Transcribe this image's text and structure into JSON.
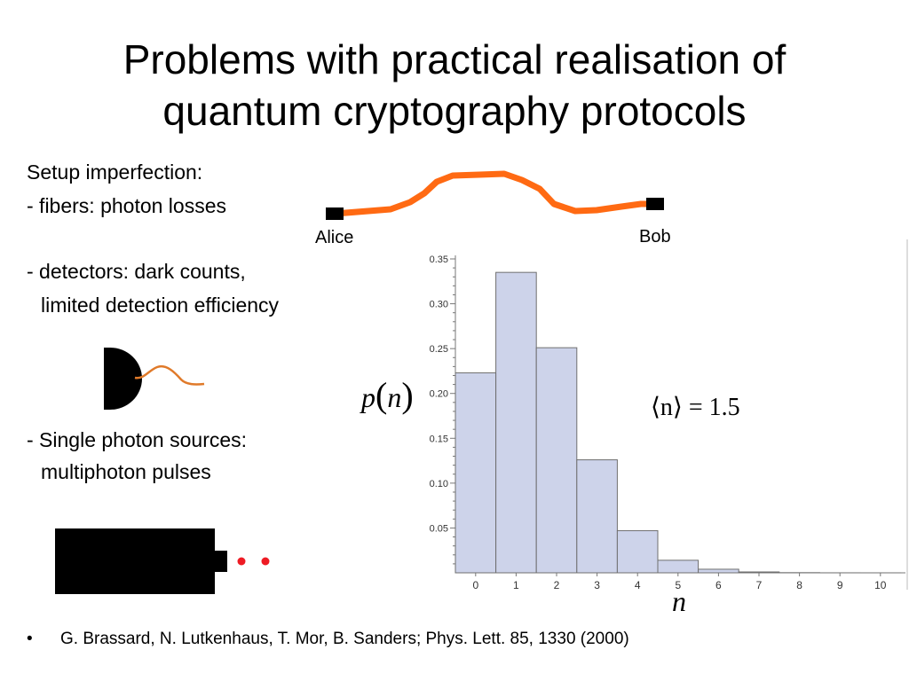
{
  "title": {
    "line1": "Problems with practical realisation of",
    "line2": "quantum cryptography protocols"
  },
  "left_text": {
    "setup": "Setup imperfection:",
    "fibers": "- fibers: photon losses",
    "detectors1": "- detectors: dark counts,",
    "detectors2": "limited detection efficiency",
    "sources1": "- Single photon sources:",
    "sources2": "multiphoton pulses"
  },
  "fiber_diagram": {
    "alice": "Alice",
    "bob": "Bob",
    "fiber_color": "#ff6a13"
  },
  "formula": {
    "pn_p": "p",
    "pn_n": "n",
    "mean": "⟨n⟩ = 1.5",
    "x_symbol": "n"
  },
  "reference": {
    "bullet": "•",
    "text": "G. Brassard, N. Lutkenhaus, T. Mor, B. Sanders; Phys. Lett. 85, 1330 (2000)"
  },
  "chart_data": {
    "type": "bar",
    "categories": [
      "0",
      "1",
      "2",
      "3",
      "4",
      "5",
      "6",
      "7",
      "8",
      "9",
      "10"
    ],
    "values": [
      0.223,
      0.335,
      0.251,
      0.126,
      0.047,
      0.014,
      0.004,
      0.001,
      0.0002,
      3e-05,
      4e-06
    ],
    "yticks": [
      "0.05",
      "0.10",
      "0.15",
      "0.20",
      "0.25",
      "0.30",
      "0.35"
    ],
    "ylim": [
      0,
      0.35
    ],
    "xlabel": "n",
    "ylabel": "p(n)",
    "bar_color": "#cdd3ea",
    "bar_stroke": "#6f6f6f"
  }
}
